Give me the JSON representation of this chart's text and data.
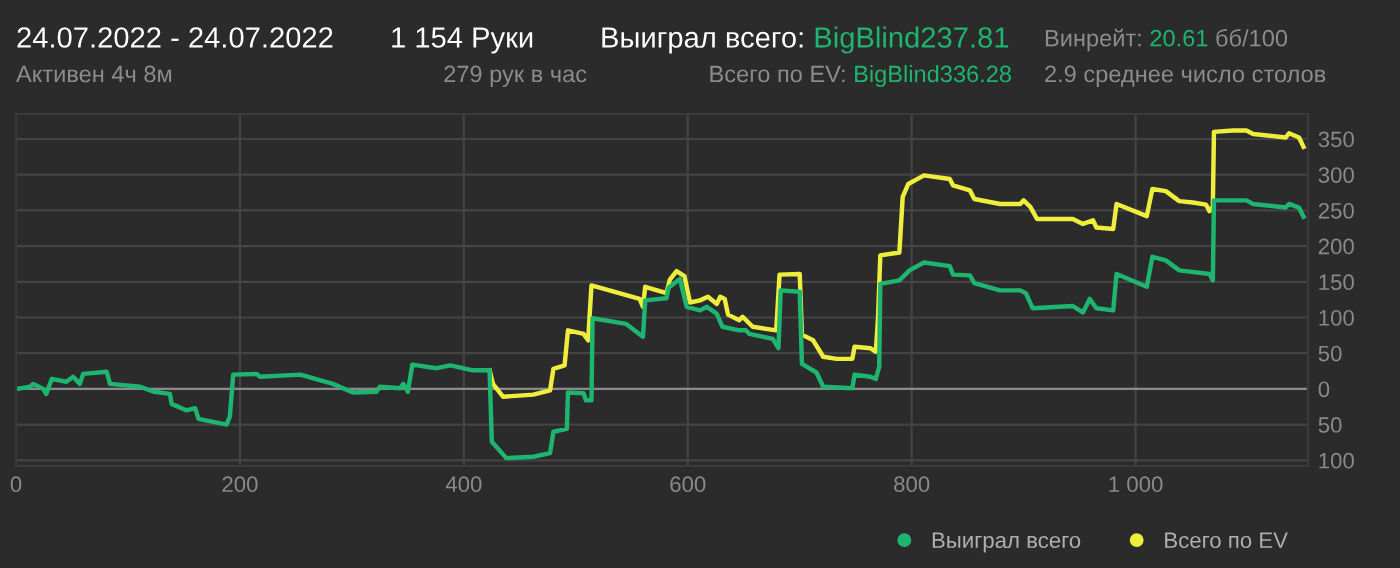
{
  "chart_data": {
    "type": "line",
    "title": "24.07.2022 - 24.07.2022",
    "subtitle": "Активен 4ч 8м",
    "annotations": [
      "1 154 Руки",
      "279 рук в час",
      "Выиграл всего:",
      "BigBlind237.81",
      "Всего по EV:",
      "BigBlind336.28",
      "Винрейт:",
      "20.61",
      "бб/100",
      "2.9 среднее число столов"
    ],
    "series": [
      {
        "name": "Всего по EV",
        "color": "#f0ee3c",
        "x": [
          423,
          426,
          435,
          462,
          477,
          480,
          490,
          493,
          507,
          511,
          514,
          530,
          557,
          560,
          562,
          581,
          584,
          590,
          597,
          602,
          611,
          618,
          626,
          629,
          633,
          636,
          646,
          649,
          658,
          679,
          682,
          700,
          702,
          712,
          721,
          733,
          747,
          749,
          763,
          768,
          770,
          772,
          789,
          792,
          797,
          811,
          834,
          837,
          852,
          856,
          879,
          897,
          900,
          906,
          912,
          944,
          953,
          962,
          965,
          980,
          983,
          1010,
          1015,
          1027,
          1039,
          1051,
          1063,
          1066,
          1069,
          1070,
          1087,
          1099,
          1105,
          1134,
          1137,
          1146,
          1150
        ],
        "values": [
          26,
          7,
          -11,
          -8,
          -2,
          28,
          33,
          82,
          77,
          68,
          145,
          138,
          126,
          115,
          143,
          134,
          153,
          165,
          158,
          121,
          124,
          129,
          119,
          129,
          126,
          104,
          96,
          101,
          87,
          82,
          160,
          161,
          76,
          68,
          45,
          42,
          42,
          59,
          57,
          52,
          101,
          187,
          191,
          269,
          287,
          299,
          294,
          285,
          278,
          266,
          259,
          259,
          264,
          255,
          238,
          238,
          231,
          236,
          226,
          224,
          259,
          242,
          280,
          277,
          263,
          261,
          258,
          249,
          255,
          360,
          362,
          362,
          357,
          352,
          358,
          352,
          339
        ]
      },
      {
        "name": "Выиграл всего",
        "color": "#1db56f",
        "x": [
          0,
          12.5,
          15.5,
          24.4,
          27,
          32,
          45,
          51,
          57,
          60,
          81,
          84,
          111,
          123,
          137.5,
          139,
          152,
          160,
          163,
          188,
          191,
          194,
          215,
          218,
          254,
          283,
          301,
          322,
          325,
          343,
          346,
          350,
          354,
          375.6,
          388,
          408,
          423,
          425,
          438,
          462,
          477,
          480,
          492,
          493,
          507,
          509,
          514,
          515,
          545,
          560,
          562,
          581,
          583,
          593,
          599,
          611,
          617,
          626,
          631,
          646,
          652,
          655,
          676,
          681,
          683,
          700,
          702,
          715,
          721,
          747,
          749,
          763,
          768,
          771,
          772,
          789,
          795,
          798,
          811,
          834,
          837,
          852,
          856,
          879,
          897,
          902,
          908,
          944,
          953,
          959,
          965,
          980,
          983,
          1010,
          1015,
          1027,
          1039,
          1066,
          1069,
          1070,
          1087,
          1099,
          1105,
          1134,
          1137,
          1146,
          1150
        ],
        "values": [
          0,
          3,
          7,
          0,
          -7,
          14,
          10,
          17,
          7,
          21,
          24,
          7,
          3,
          -4,
          -7,
          -21,
          -30,
          -27,
          -42,
          -50,
          -39,
          20,
          21,
          17,
          20,
          7,
          -5,
          -4,
          3,
          1,
          7,
          -4,
          34,
          29,
          33,
          26,
          26,
          -74,
          -97,
          -95,
          -90,
          -60,
          -56,
          -5,
          -6,
          -16,
          -16,
          99,
          91,
          73,
          124,
          127,
          142,
          154,
          115,
          110,
          115,
          105,
          87,
          82,
          82,
          77,
          70,
          57,
          138,
          136,
          35,
          23,
          3,
          1,
          20,
          17,
          14,
          31,
          147,
          152,
          161,
          166,
          177,
          172,
          160,
          159,
          148,
          138,
          138,
          134,
          113,
          116,
          107,
          126,
          113,
          110,
          161,
          143,
          185,
          180,
          166,
          161,
          152,
          264,
          264,
          264,
          259,
          254,
          259,
          254,
          241
        ]
      }
    ],
    "xlim": [
      0,
      1154
    ],
    "xticks": [
      0,
      200,
      400,
      600,
      800,
      {
        "value": 1000,
        "label": "1 000"
      }
    ],
    "ylim": [
      -108,
      385
    ],
    "yticks": [
      {
        "value": -100,
        "label": "100"
      },
      {
        "value": -50,
        "label": "50"
      },
      0,
      50,
      100,
      150,
      200,
      250,
      300,
      350
    ],
    "grid": true,
    "legend": "bottom right"
  }
}
